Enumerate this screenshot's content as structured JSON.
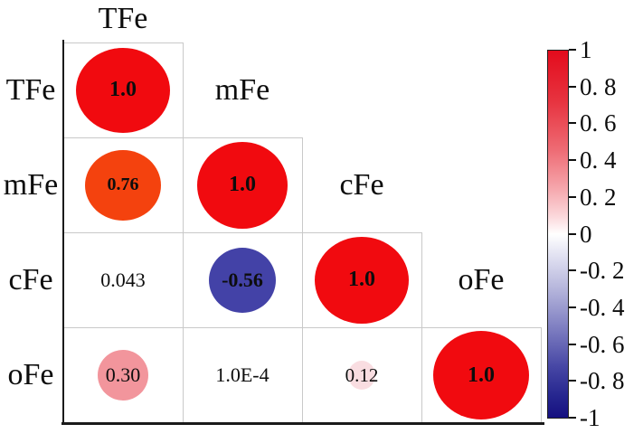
{
  "figure": {
    "background": "#ffffff",
    "axis_color": "#1a1a1a",
    "grid_color": "#c9c9c9"
  },
  "chart_data": {
    "type": "heatmap",
    "subtype": "correlation-matrix-lower-triangle-correlogram",
    "variables": [
      "TFe",
      "mFe",
      "cFe",
      "oFe"
    ],
    "legend_position": "right-colorbar",
    "grid": true,
    "cells": [
      {
        "row": 0,
        "col": 0,
        "value": 1.0,
        "label": "1.0",
        "circle": true,
        "color": "#f10a0f",
        "size_w": 104,
        "size_h": 94,
        "bold": true,
        "font_px": 24
      },
      {
        "row": 1,
        "col": 0,
        "value": 0.76,
        "label": "0.76",
        "circle": true,
        "color": "#f4420e",
        "size_w": 84,
        "size_h": 78,
        "bold": true,
        "font_px": 20
      },
      {
        "row": 1,
        "col": 1,
        "value": 1.0,
        "label": "1.0",
        "circle": true,
        "color": "#f10a0f",
        "size_w": 100,
        "size_h": 96,
        "bold": true,
        "font_px": 24
      },
      {
        "row": 2,
        "col": 0,
        "value": 0.043,
        "label": "0.043",
        "circle": false,
        "color": null,
        "size_w": 0,
        "size_h": 0,
        "bold": false,
        "font_px": 22
      },
      {
        "row": 2,
        "col": 1,
        "value": -0.56,
        "label": "-0.56",
        "circle": true,
        "color": "#4342a7",
        "size_w": 74,
        "size_h": 72,
        "bold": true,
        "font_px": 22
      },
      {
        "row": 2,
        "col": 2,
        "value": 1.0,
        "label": "1.0",
        "circle": true,
        "color": "#f10a0f",
        "size_w": 104,
        "size_h": 96,
        "bold": true,
        "font_px": 24
      },
      {
        "row": 3,
        "col": 0,
        "value": 0.3,
        "label": "0.30",
        "circle": true,
        "color": "#f2959c",
        "size_w": 56,
        "size_h": 56,
        "bold": false,
        "font_px": 22
      },
      {
        "row": 3,
        "col": 1,
        "value": 0.0001,
        "label": "1.0E-4",
        "circle": false,
        "color": null,
        "size_w": 0,
        "size_h": 0,
        "bold": false,
        "font_px": 22
      },
      {
        "row": 3,
        "col": 2,
        "value": 0.12,
        "label": "0.12",
        "circle": true,
        "color": "#f9dde1",
        "size_w": 30,
        "size_h": 32,
        "bold": false,
        "font_px": 21
      },
      {
        "row": 3,
        "col": 3,
        "value": 1.0,
        "label": "1.0",
        "circle": true,
        "color": "#f10a0f",
        "size_w": 106,
        "size_h": 98,
        "bold": true,
        "font_px": 24
      }
    ],
    "colorbar": {
      "min": -1,
      "max": 1,
      "tick_values": [
        1,
        0.8,
        0.6,
        0.4,
        0.2,
        0,
        -0.2,
        -0.4,
        -0.6,
        -0.8,
        -1
      ],
      "tick_labels": [
        "1",
        "0. 8",
        "0. 6",
        "0. 4",
        "0. 2",
        "0",
        "-0. 2",
        "-0. 4",
        "-0. 6",
        "-0. 8",
        "-1"
      ],
      "gradient_top_color": "#e30b1c",
      "gradient_mid_color": "#ffffff",
      "gradient_bottom_color": "#151080"
    }
  }
}
